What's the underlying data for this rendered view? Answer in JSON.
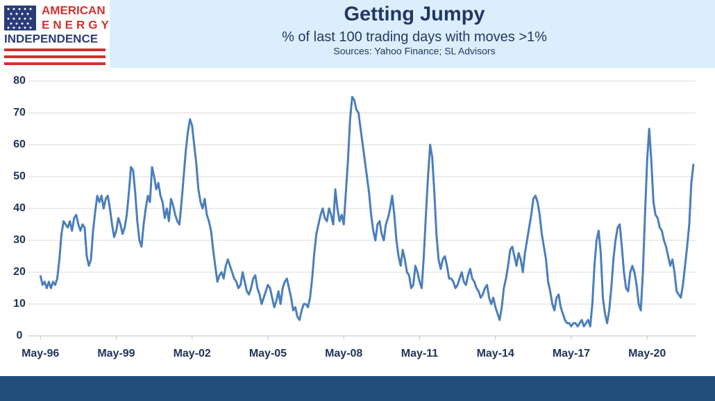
{
  "logo": {
    "line1": "AMERICAN",
    "line2": "ENERGY",
    "line3": "INDEPENDENCE"
  },
  "chart_data": {
    "type": "line",
    "title": "Getting Jumpy",
    "subtitle": "% of last 100 trading days with moves >1%",
    "source": "Sources: Yahoo Finance; SL Advisors",
    "color": "#4a7ebb",
    "grid": true,
    "ylim": [
      0,
      80
    ],
    "yticks": [
      0,
      10,
      20,
      30,
      40,
      50,
      60,
      70,
      80
    ],
    "xlim": [
      "1995-11",
      "2022-04"
    ],
    "xticks": [
      {
        "value": "1996-05",
        "label": "May-96"
      },
      {
        "value": "1999-05",
        "label": "May-99"
      },
      {
        "value": "2002-05",
        "label": "May-02"
      },
      {
        "value": "2005-05",
        "label": "May-05"
      },
      {
        "value": "2008-05",
        "label": "May-08"
      },
      {
        "value": "2011-05",
        "label": "May-11"
      },
      {
        "value": "2014-05",
        "label": "May-14"
      },
      {
        "value": "2017-05",
        "label": "May-17"
      },
      {
        "value": "2020-05",
        "label": "May-20"
      }
    ],
    "x": [
      "1996-05",
      "1996-06",
      "1996-07",
      "1996-08",
      "1996-09",
      "1996-10",
      "1996-11",
      "1996-12",
      "1997-01",
      "1997-02",
      "1997-03",
      "1997-04",
      "1997-05",
      "1997-06",
      "1997-07",
      "1997-08",
      "1997-09",
      "1997-10",
      "1997-11",
      "1997-12",
      "1998-01",
      "1998-02",
      "1998-03",
      "1998-04",
      "1998-05",
      "1998-06",
      "1998-07",
      "1998-08",
      "1998-09",
      "1998-10",
      "1998-11",
      "1998-12",
      "1999-01",
      "1999-02",
      "1999-03",
      "1999-04",
      "1999-05",
      "1999-06",
      "1999-07",
      "1999-08",
      "1999-09",
      "1999-10",
      "1999-11",
      "1999-12",
      "2000-01",
      "2000-02",
      "2000-03",
      "2000-04",
      "2000-05",
      "2000-06",
      "2000-07",
      "2000-08",
      "2000-09",
      "2000-10",
      "2000-11",
      "2000-12",
      "2001-01",
      "2001-02",
      "2001-03",
      "2001-04",
      "2001-05",
      "2001-06",
      "2001-07",
      "2001-08",
      "2001-09",
      "2001-10",
      "2001-11",
      "2001-12",
      "2002-01",
      "2002-02",
      "2002-03",
      "2002-04",
      "2002-05",
      "2002-06",
      "2002-07",
      "2002-08",
      "2002-09",
      "2002-10",
      "2002-11",
      "2002-12",
      "2003-01",
      "2003-02",
      "2003-03",
      "2003-04",
      "2003-05",
      "2003-06",
      "2003-07",
      "2003-08",
      "2003-09",
      "2003-10",
      "2003-11",
      "2003-12",
      "2004-01",
      "2004-02",
      "2004-03",
      "2004-04",
      "2004-05",
      "2004-06",
      "2004-07",
      "2004-08",
      "2004-09",
      "2004-10",
      "2004-11",
      "2004-12",
      "2005-01",
      "2005-02",
      "2005-03",
      "2005-04",
      "2005-05",
      "2005-06",
      "2005-07",
      "2005-08",
      "2005-09",
      "2005-10",
      "2005-11",
      "2005-12",
      "2006-01",
      "2006-02",
      "2006-03",
      "2006-04",
      "2006-05",
      "2006-06",
      "2006-07",
      "2006-08",
      "2006-09",
      "2006-10",
      "2006-11",
      "2006-12",
      "2007-01",
      "2007-02",
      "2007-03",
      "2007-04",
      "2007-05",
      "2007-06",
      "2007-07",
      "2007-08",
      "2007-09",
      "2007-10",
      "2007-11",
      "2007-12",
      "2008-01",
      "2008-02",
      "2008-03",
      "2008-04",
      "2008-05",
      "2008-06",
      "2008-07",
      "2008-08",
      "2008-09",
      "2008-10",
      "2008-11",
      "2008-12",
      "2009-01",
      "2009-02",
      "2009-03",
      "2009-04",
      "2009-05",
      "2009-06",
      "2009-07",
      "2009-08",
      "2009-09",
      "2009-10",
      "2009-11",
      "2009-12",
      "2010-01",
      "2010-02",
      "2010-03",
      "2010-04",
      "2010-05",
      "2010-06",
      "2010-07",
      "2010-08",
      "2010-09",
      "2010-10",
      "2010-11",
      "2010-12",
      "2011-01",
      "2011-02",
      "2011-03",
      "2011-04",
      "2011-05",
      "2011-06",
      "2011-07",
      "2011-08",
      "2011-09",
      "2011-10",
      "2011-11",
      "2011-12",
      "2012-01",
      "2012-02",
      "2012-03",
      "2012-04",
      "2012-05",
      "2012-06",
      "2012-07",
      "2012-08",
      "2012-09",
      "2012-10",
      "2012-11",
      "2012-12",
      "2013-01",
      "2013-02",
      "2013-03",
      "2013-04",
      "2013-05",
      "2013-06",
      "2013-07",
      "2013-08",
      "2013-09",
      "2013-10",
      "2013-11",
      "2013-12",
      "2014-01",
      "2014-02",
      "2014-03",
      "2014-04",
      "2014-05",
      "2014-06",
      "2014-07",
      "2014-08",
      "2014-09",
      "2014-10",
      "2014-11",
      "2014-12",
      "2015-01",
      "2015-02",
      "2015-03",
      "2015-04",
      "2015-05",
      "2015-06",
      "2015-07",
      "2015-08",
      "2015-09",
      "2015-10",
      "2015-11",
      "2015-12",
      "2016-01",
      "2016-02",
      "2016-03",
      "2016-04",
      "2016-05",
      "2016-06",
      "2016-07",
      "2016-08",
      "2016-09",
      "2016-10",
      "2016-11",
      "2016-12",
      "2017-01",
      "2017-02",
      "2017-03",
      "2017-04",
      "2017-05",
      "2017-06",
      "2017-07",
      "2017-08",
      "2017-09",
      "2017-10",
      "2017-11",
      "2017-12",
      "2018-01",
      "2018-02",
      "2018-03",
      "2018-04",
      "2018-05",
      "2018-06",
      "2018-07",
      "2018-08",
      "2018-09",
      "2018-10",
      "2018-11",
      "2018-12",
      "2019-01",
      "2019-02",
      "2019-03",
      "2019-04",
      "2019-05",
      "2019-06",
      "2019-07",
      "2019-08",
      "2019-09",
      "2019-10",
      "2019-11",
      "2019-12",
      "2020-01",
      "2020-02",
      "2020-03",
      "2020-04",
      "2020-05",
      "2020-06",
      "2020-07",
      "2020-08",
      "2020-09",
      "2020-10",
      "2020-11",
      "2020-12",
      "2021-01",
      "2021-02",
      "2021-03",
      "2021-04",
      "2021-05",
      "2021-06",
      "2021-07",
      "2021-08",
      "2021-09",
      "2021-10",
      "2021-11",
      "2021-12",
      "2022-01",
      "2022-02",
      "2022-03"
    ],
    "values": [
      19,
      16,
      17,
      15,
      17,
      15,
      17,
      16,
      18,
      24,
      32,
      36,
      35,
      34,
      36,
      33,
      37,
      38,
      35,
      33,
      35,
      34,
      25,
      22,
      24,
      33,
      39,
      44,
      42,
      44,
      40,
      43,
      44,
      40,
      35,
      31,
      33,
      37,
      35,
      32,
      34,
      38,
      45,
      53,
      52,
      45,
      36,
      30,
      28,
      35,
      40,
      44,
      42,
      53,
      50,
      46,
      48,
      44,
      42,
      37,
      40,
      36,
      43,
      41,
      38,
      36,
      35,
      42,
      50,
      58,
      64,
      68,
      66,
      60,
      54,
      46,
      42,
      40,
      43,
      38,
      36,
      33,
      27,
      22,
      17,
      19,
      20,
      18,
      22,
      24,
      22,
      20,
      18,
      17,
      15,
      16,
      20,
      17,
      14,
      13,
      15,
      18,
      19,
      15,
      13,
      10,
      12,
      14,
      16,
      15,
      12,
      9,
      11,
      14,
      10,
      15,
      17,
      18,
      15,
      12,
      8,
      9,
      6,
      5,
      8,
      10,
      10,
      9,
      12,
      18,
      26,
      32,
      35,
      38,
      40,
      37,
      36,
      40,
      38,
      35,
      46,
      40,
      36,
      38,
      35,
      45,
      55,
      68,
      75,
      74,
      71,
      70,
      65,
      60,
      55,
      50,
      45,
      38,
      33,
      30,
      35,
      36,
      32,
      30,
      35,
      37,
      40,
      44,
      38,
      30,
      25,
      22,
      27,
      24,
      20,
      19,
      15,
      16,
      22,
      20,
      17,
      15,
      25,
      38,
      50,
      60,
      56,
      45,
      32,
      24,
      21,
      24,
      25,
      22,
      18,
      18,
      17,
      15,
      16,
      18,
      20,
      17,
      16,
      19,
      21,
      18,
      17,
      15,
      14,
      12,
      13,
      15,
      16,
      12,
      10,
      12,
      9,
      7,
      5,
      9,
      15,
      18,
      22,
      27,
      28,
      25,
      22,
      26,
      24,
      20,
      26,
      30,
      34,
      38,
      43,
      44,
      42,
      38,
      32,
      28,
      24,
      17,
      14,
      10,
      8,
      12,
      13,
      9,
      7,
      5,
      4,
      4,
      3,
      4,
      4,
      3,
      4,
      5,
      3,
      4,
      5,
      3,
      10,
      22,
      30,
      33,
      26,
      12,
      7,
      4,
      8,
      15,
      24,
      30,
      34,
      35,
      28,
      20,
      15,
      14,
      20,
      22,
      20,
      16,
      10,
      8,
      20,
      38,
      55,
      65,
      55,
      42,
      38,
      37,
      34,
      33,
      30,
      28,
      25,
      22,
      24,
      20,
      14,
      13,
      12,
      16,
      22,
      28,
      35,
      48,
      54
    ]
  }
}
